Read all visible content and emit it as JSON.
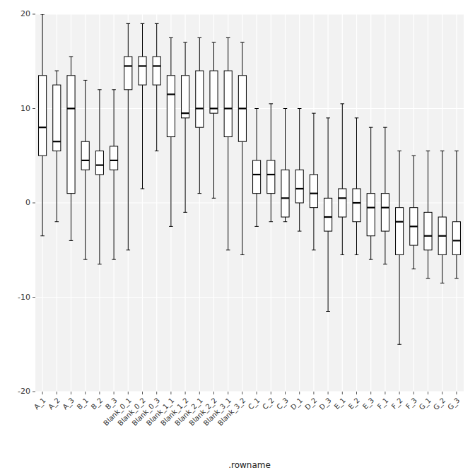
{
  "chart_data": {
    "type": "box",
    "xlabel": ".rowname",
    "categories": [
      "A_1",
      "A_2",
      "A_3",
      "B_1",
      "B_2",
      "B_3",
      "Blank_0_1",
      "Blank_0_2",
      "Blank_0_3",
      "Blank_1_1",
      "Blank_1_2",
      "Blank_2_1",
      "Blank_2_2",
      "Blank_3_1",
      "Blank_3_2",
      "C_1",
      "C_2",
      "C_3",
      "D_1",
      "D_2",
      "D_3",
      "E_1",
      "E_2",
      "E_3",
      "F_1",
      "F_2",
      "F_3",
      "G_1",
      "G_2",
      "G_3"
    ],
    "whislo": [
      -3.5,
      -2.0,
      -4.0,
      -6.0,
      -6.5,
      -6.0,
      -5.0,
      1.5,
      5.5,
      -2.5,
      -1.0,
      1.0,
      0.5,
      -5.0,
      -5.5,
      -2.5,
      -2.0,
      -2.0,
      -3.0,
      -5.0,
      -11.5,
      -5.5,
      -5.5,
      -6.0,
      -6.5,
      -15.0,
      -7.0,
      -8.0,
      -8.5,
      -8.0
    ],
    "q1": [
      5.0,
      5.5,
      1.0,
      3.5,
      3.0,
      3.5,
      12.0,
      12.5,
      12.5,
      7.0,
      9.0,
      8.0,
      9.5,
      7.0,
      6.5,
      1.0,
      1.0,
      -1.5,
      0.0,
      -0.5,
      -3.0,
      -1.5,
      -2.0,
      -3.5,
      -3.0,
      -5.5,
      -4.5,
      -5.0,
      -5.5,
      -5.5
    ],
    "med": [
      8.0,
      6.5,
      10.0,
      4.5,
      4.0,
      4.5,
      14.5,
      14.5,
      14.5,
      11.5,
      9.5,
      10.0,
      10.0,
      10.0,
      10.0,
      3.0,
      3.0,
      0.5,
      1.5,
      1.0,
      -1.5,
      0.5,
      0.0,
      -0.5,
      -0.5,
      -2.0,
      -2.5,
      -3.5,
      -3.5,
      -4.0
    ],
    "q3": [
      13.5,
      12.5,
      13.5,
      6.5,
      5.5,
      6.0,
      15.5,
      15.5,
      15.5,
      13.5,
      13.5,
      14.0,
      14.0,
      14.0,
      13.5,
      4.5,
      4.5,
      3.5,
      3.5,
      3.0,
      0.5,
      1.5,
      1.5,
      1.0,
      1.0,
      -0.5,
      -0.5,
      -1.0,
      -1.5,
      -2.0
    ],
    "whishi": [
      20.0,
      14.0,
      15.5,
      13.0,
      12.0,
      12.0,
      19.0,
      19.0,
      19.0,
      17.5,
      17.0,
      17.5,
      17.0,
      17.5,
      17.0,
      10.0,
      10.5,
      10.0,
      10.0,
      9.5,
      9.0,
      10.5,
      9.0,
      8.0,
      8.0,
      5.5,
      5.0,
      5.5,
      5.5,
      5.5
    ],
    "ylim": [
      -20,
      20
    ],
    "yticks": [
      -20,
      -10,
      0,
      10,
      20
    ],
    "grid": true,
    "color": "#FFFFFF"
  }
}
